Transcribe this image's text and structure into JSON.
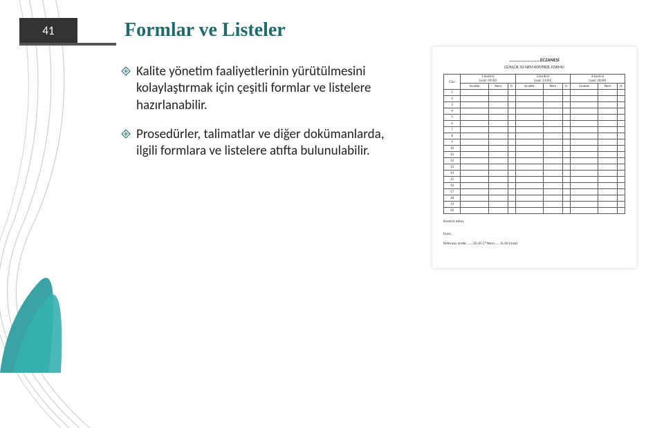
{
  "page_number": "41",
  "title": "Formlar ve Listeler",
  "bullets": [
    "Kalite yönetim faaliyetlerinin yürütülmesini kolaylaştırmak için çeşitli formlar ve listelere hazırlanabilir.",
    "Prosedürler, talimatlar ve diğer dokümanlarda, ilgili formlara ve listelere atıfta bulunulabilir."
  ],
  "form_image": {
    "top_label": "………………………ECZANESİ",
    "title": "GÜNLÜK ISI-NEM KONTROL FORMU",
    "kontrol_headers": [
      "1.kontrol",
      "2.kontrol",
      "3.kontrol"
    ],
    "kontrol_sub": [
      "(saat: 09:00)",
      "(saat: 13:00)",
      "(saat: 18:00)"
    ],
    "col_first": "Gün",
    "cols": [
      "Sıcaklık",
      "Nem",
      "İz"
    ],
    "row_count": 20,
    "footer_left": "Kontrol eden:",
    "footer_sig": "İmza:",
    "footer_bottom": "Referans aralık: ……10-25 C°                                         Nem…….%  60 (max)"
  },
  "colors": {
    "title_color": "#1f6b6b",
    "page_box_bg": "#333333",
    "page_box_fg": "#ffffff",
    "accent_teal": "#2f9e9e",
    "curve_stroke": "#cfcfcf",
    "leaf_fill": "#2f9e9e",
    "text_color": "#222222"
  },
  "bullet_icon": {
    "type": "diamond-arrow",
    "stroke": "#1f6b6b"
  }
}
